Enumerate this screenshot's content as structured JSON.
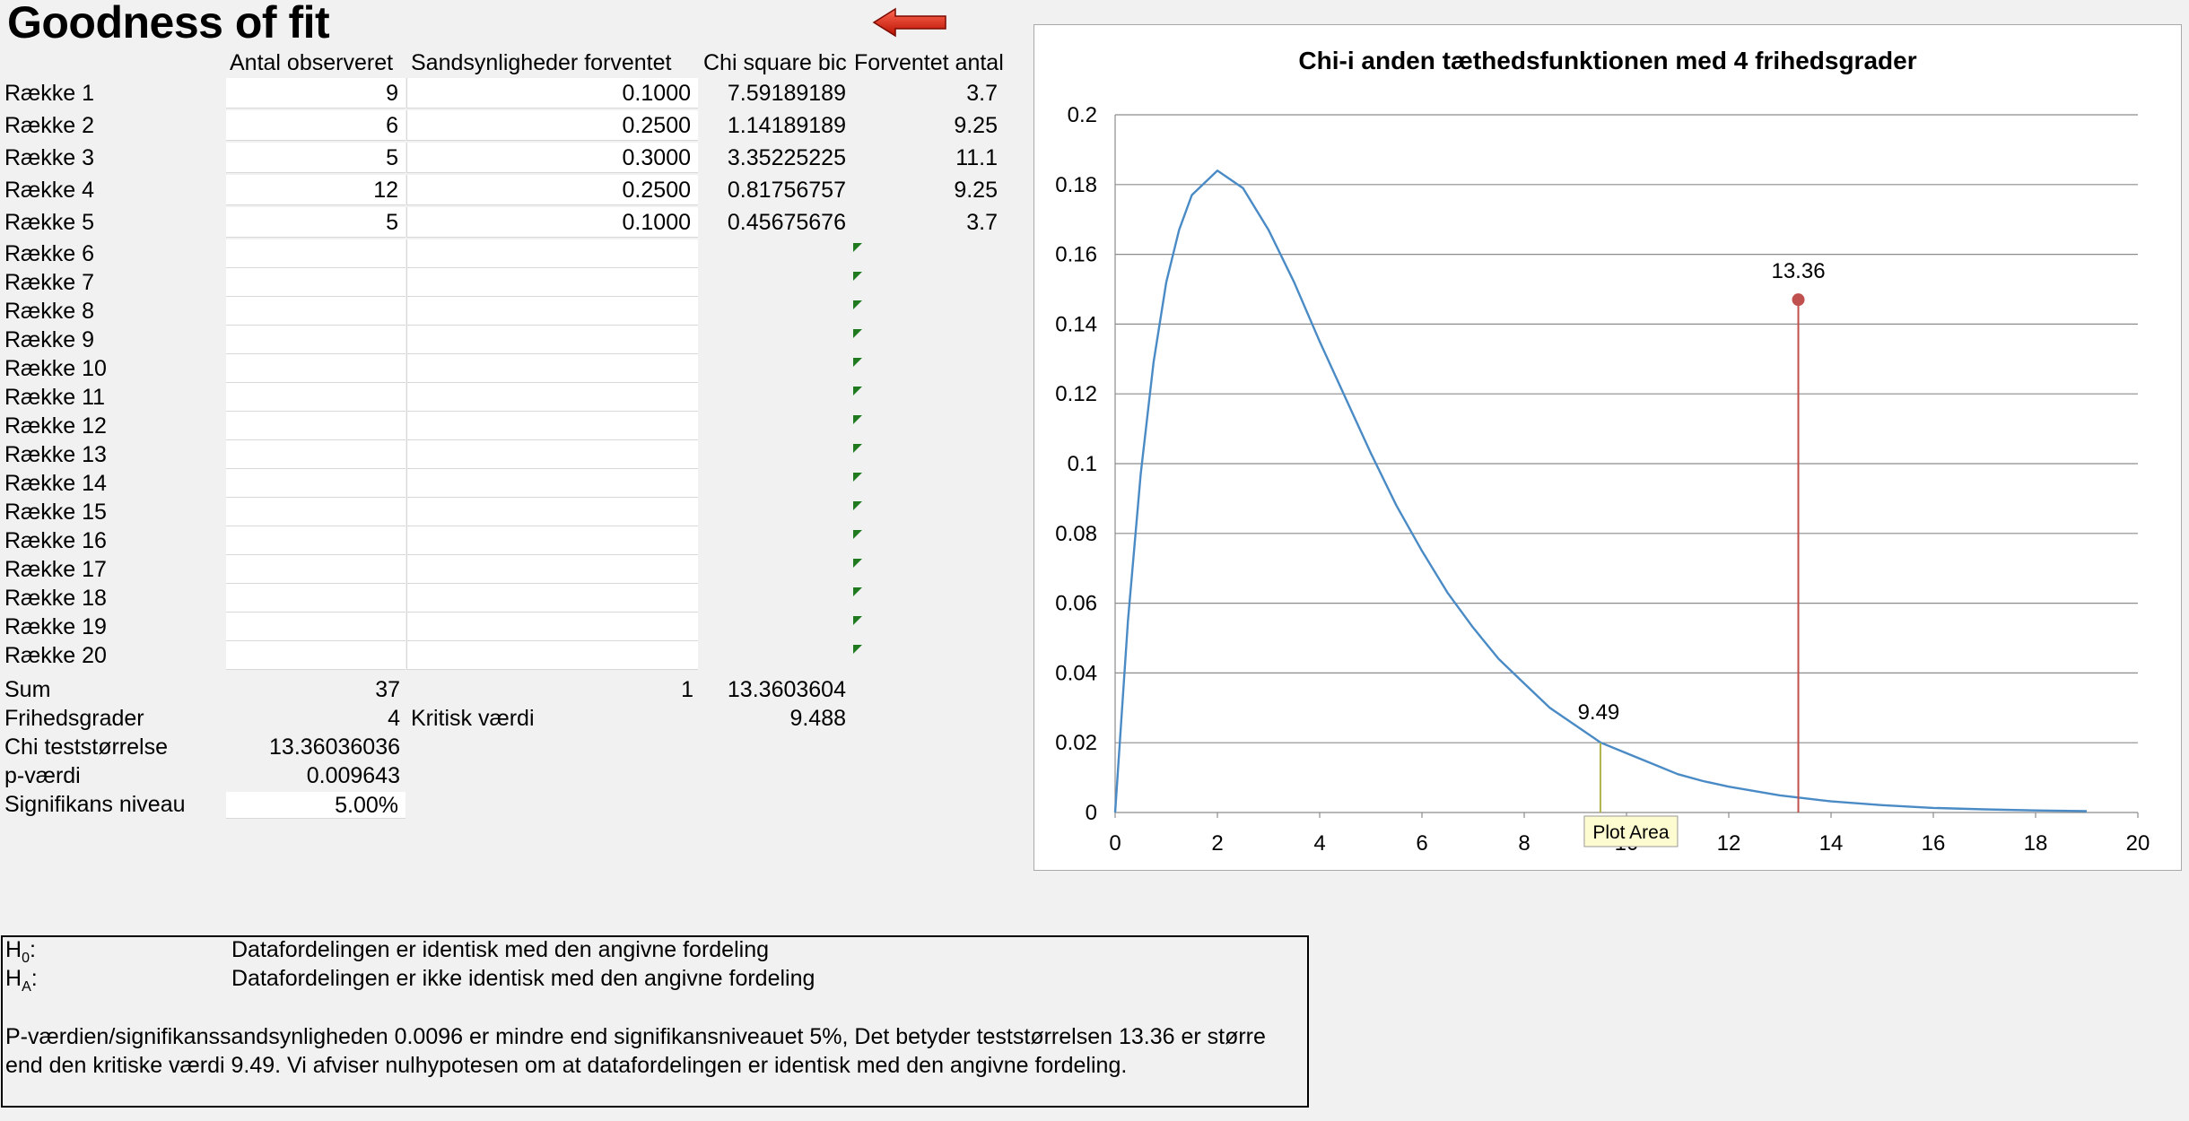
{
  "sheet": {
    "title": "Goodness of fit",
    "headers": {
      "observed": "Antal observeret",
      "probabilities": "Sandsynligheder forventet",
      "chi_contrib": "Chi square bic",
      "expected": "Forventet antal"
    },
    "rows": [
      {
        "label": "Række 1",
        "observed": "9",
        "prob": "0.1000",
        "chi": "7.59189189",
        "expected": "3.7"
      },
      {
        "label": "Række 2",
        "observed": "6",
        "prob": "0.2500",
        "chi": "1.14189189",
        "expected": "9.25"
      },
      {
        "label": "Række 3",
        "observed": "5",
        "prob": "0.3000",
        "chi": "3.35225225",
        "expected": "11.1"
      },
      {
        "label": "Række 4",
        "observed": "12",
        "prob": "0.2500",
        "chi": "0.81756757",
        "expected": "9.25"
      },
      {
        "label": "Række 5",
        "observed": "5",
        "prob": "0.1000",
        "chi": "0.45675676",
        "expected": "3.7"
      },
      {
        "label": "Række 6",
        "observed": "",
        "prob": "",
        "chi": "",
        "expected": ""
      },
      {
        "label": "Række 7",
        "observed": "",
        "prob": "",
        "chi": "",
        "expected": ""
      },
      {
        "label": "Række 8",
        "observed": "",
        "prob": "",
        "chi": "",
        "expected": ""
      },
      {
        "label": "Række 9",
        "observed": "",
        "prob": "",
        "chi": "",
        "expected": ""
      },
      {
        "label": "Række 10",
        "observed": "",
        "prob": "",
        "chi": "",
        "expected": ""
      },
      {
        "label": "Række 11",
        "observed": "",
        "prob": "",
        "chi": "",
        "expected": ""
      },
      {
        "label": "Række 12",
        "observed": "",
        "prob": "",
        "chi": "",
        "expected": ""
      },
      {
        "label": "Række 13",
        "observed": "",
        "prob": "",
        "chi": "",
        "expected": ""
      },
      {
        "label": "Række 14",
        "observed": "",
        "prob": "",
        "chi": "",
        "expected": ""
      },
      {
        "label": "Række 15",
        "observed": "",
        "prob": "",
        "chi": "",
        "expected": ""
      },
      {
        "label": "Række 16",
        "observed": "",
        "prob": "",
        "chi": "",
        "expected": ""
      },
      {
        "label": "Række 17",
        "observed": "",
        "prob": "",
        "chi": "",
        "expected": ""
      },
      {
        "label": "Række 18",
        "observed": "",
        "prob": "",
        "chi": "",
        "expected": ""
      },
      {
        "label": "Række 19",
        "observed": "",
        "prob": "",
        "chi": "",
        "expected": ""
      },
      {
        "label": "Række 20",
        "observed": "",
        "prob": "",
        "chi": "",
        "expected": ""
      }
    ],
    "sum": {
      "label": "Sum",
      "observed": "37",
      "prob": "1",
      "chi": "13.3603604"
    },
    "df": {
      "label": "Frihedsgrader",
      "value": "4",
      "crit_label": "Kritisk værdi",
      "crit_value": "9.488"
    },
    "chi_stat": {
      "label": "Chi teststørrelse",
      "value": "13.36036036"
    },
    "p_value": {
      "label": "p-værdi",
      "value": "0.009643"
    },
    "significance": {
      "label": "Signifikans niveau",
      "value": "5.00%"
    }
  },
  "notes": {
    "h0_label": "H",
    "h0_sub": "0",
    "h0_suffix": ":",
    "h0_text": "Datafordelingen er identisk med den angivne fordeling",
    "ha_label": "H",
    "ha_sub": "A",
    "ha_suffix": ":",
    "ha_text": "Datafordelingen er ikke identisk med den angivne fordeling",
    "conclusion": "P-værdien/signifikanssandsynligheden 0.0096 er mindre end signifikansniveauet 5%, Det betyder teststørrelsen 13.36 er større end den kritiske værdi 9.49. Vi afviser nulhypotesen om at datafordelingen er identisk med den angivne fordeling."
  },
  "tooltip": "Plot Area",
  "colors": {
    "curve": "#4a8bc6",
    "stat_marker": "#c0504d",
    "crit_marker": "#b2b24a",
    "arrow": "#e02010"
  },
  "chart_data": {
    "type": "line",
    "title": "Chi-i anden tæthedsfunktionen med 4 frihedsgrader",
    "xlim": [
      0,
      20
    ],
    "ylim": [
      0,
      0.2
    ],
    "x_ticks": [
      "0",
      "2",
      "4",
      "6",
      "8",
      "10",
      "12",
      "14",
      "16",
      "18",
      "20"
    ],
    "y_ticks": [
      "0",
      "0.02",
      "0.04",
      "0.06",
      "0.08",
      "0.1",
      "0.12",
      "0.14",
      "0.16",
      "0.18",
      "0.2"
    ],
    "grid": true,
    "series": [
      {
        "x": [
          0,
          0.25,
          0.5,
          0.75,
          1,
          1.25,
          1.5,
          2,
          2.5,
          3,
          3.5,
          4,
          4.5,
          5,
          5.5,
          6,
          6.5,
          7,
          7.5,
          8,
          8.5,
          9,
          9.5,
          10,
          10.5,
          11,
          11.5,
          12,
          13,
          14,
          15,
          16,
          17,
          18,
          19
        ],
        "y": [
          0,
          0.055,
          0.097,
          0.129,
          0.152,
          0.167,
          0.177,
          0.184,
          0.179,
          0.167,
          0.152,
          0.135,
          0.119,
          0.103,
          0.088,
          0.075,
          0.063,
          0.053,
          0.044,
          0.037,
          0.03,
          0.025,
          0.02,
          0.017,
          0.014,
          0.011,
          0.009,
          0.0074,
          0.0049,
          0.0032,
          0.0021,
          0.0013,
          0.0009,
          0.0006,
          0.0004
        ]
      }
    ],
    "markers": [
      {
        "x": 13.36,
        "y": 0.147,
        "label": "13.36"
      },
      {
        "x": 9.49,
        "y": 0.02,
        "label": "9.49"
      }
    ]
  }
}
